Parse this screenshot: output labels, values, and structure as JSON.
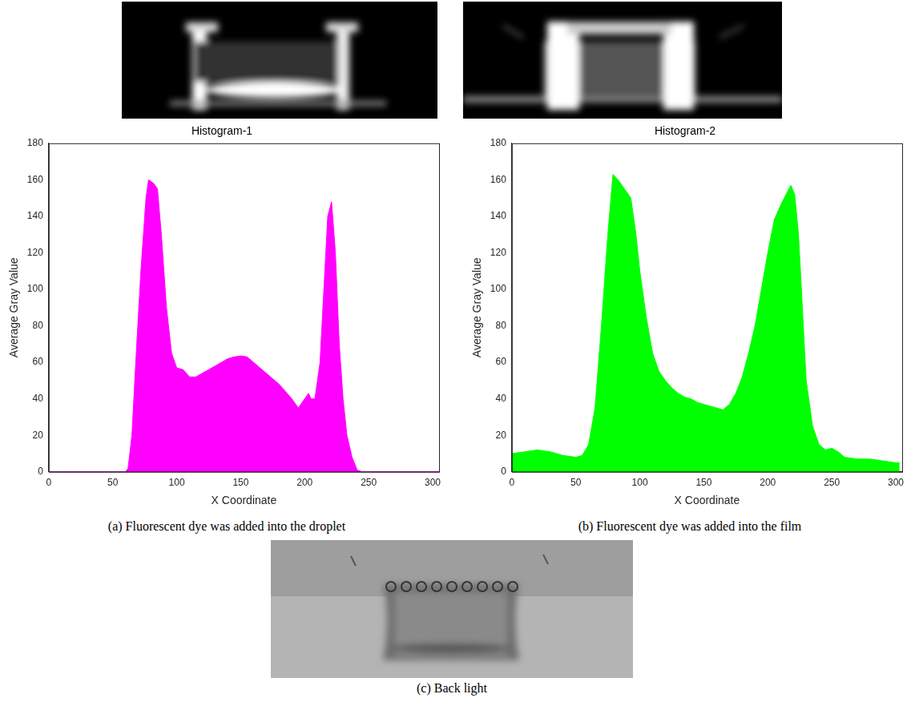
{
  "chart_data": [
    {
      "type": "area",
      "title": "Histogram-1",
      "x_label": "X Coordinate",
      "y_label": "Average Gray Value",
      "x": [
        0,
        60,
        62,
        65,
        68,
        72,
        76,
        78,
        82,
        85,
        88,
        92,
        96,
        100,
        105,
        110,
        115,
        120,
        125,
        130,
        135,
        140,
        145,
        150,
        155,
        160,
        165,
        170,
        175,
        180,
        185,
        190,
        195,
        198,
        203,
        205,
        208,
        212,
        215,
        218,
        221,
        224,
        227,
        230,
        233,
        237,
        241,
        245,
        305
      ],
      "values": [
        0,
        0,
        2,
        20,
        60,
        110,
        150,
        160,
        158,
        155,
        130,
        90,
        65,
        57,
        56,
        52,
        52,
        54,
        56,
        58,
        60,
        62,
        63,
        63.5,
        63,
        60,
        57,
        54,
        51,
        48,
        44,
        40,
        35,
        38,
        43,
        40,
        40,
        60,
        100,
        140,
        148,
        120,
        70,
        40,
        20,
        8,
        1,
        0,
        0
      ],
      "color": "#ff00ff",
      "xlim": [
        0,
        305
      ],
      "xticks": [
        0,
        50,
        100,
        150,
        200,
        250,
        300
      ],
      "ylim": [
        0,
        180
      ],
      "yticks": [
        0,
        20,
        40,
        60,
        80,
        100,
        120,
        140,
        160,
        180
      ],
      "grid": false
    },
    {
      "type": "area",
      "title": "Histogram-2",
      "x_label": "X Coordinate",
      "y_label": "Average Gray Value",
      "x": [
        0,
        10,
        20,
        30,
        40,
        50,
        55,
        60,
        65,
        70,
        75,
        79,
        83,
        88,
        93,
        97,
        100,
        105,
        110,
        115,
        120,
        125,
        130,
        135,
        140,
        145,
        150,
        155,
        160,
        165,
        170,
        175,
        180,
        185,
        190,
        195,
        200,
        205,
        210,
        215,
        218,
        221,
        224,
        227,
        230,
        235,
        240,
        245,
        250,
        255,
        260,
        270,
        280,
        290,
        300,
        303
      ],
      "values": [
        10,
        11,
        12,
        11,
        9,
        8,
        9,
        15,
        35,
        80,
        130,
        163,
        160,
        155,
        150,
        130,
        110,
        85,
        65,
        55,
        50,
        46,
        43,
        41,
        40,
        38,
        37,
        36,
        35,
        34,
        37,
        43,
        52,
        65,
        80,
        100,
        120,
        138,
        146,
        153,
        157,
        152,
        130,
        90,
        50,
        25,
        15,
        12,
        13,
        11,
        8,
        7,
        7,
        6,
        5,
        5
      ],
      "color": "#00ff00",
      "xlim": [
        0,
        305
      ],
      "xticks": [
        0,
        50,
        100,
        150,
        200,
        250,
        300
      ],
      "ylim": [
        0,
        180
      ],
      "yticks": [
        0,
        20,
        40,
        60,
        80,
        100,
        120,
        140,
        160,
        180
      ],
      "grid": false
    }
  ],
  "captions": [
    "(a) Fluorescent dye was added into the droplet",
    "(b) Fluorescent dye was added into the film",
    "(c) Back light"
  ]
}
